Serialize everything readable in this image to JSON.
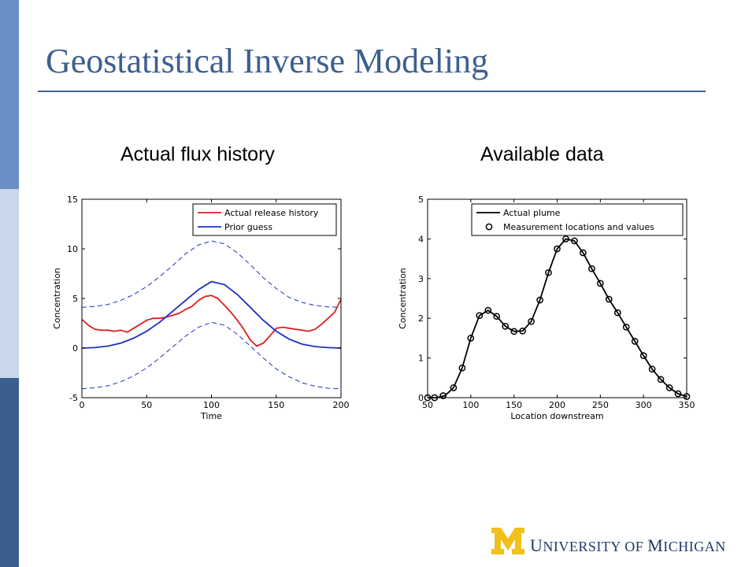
{
  "slide": {
    "title": "Geostatistical Inverse Modeling",
    "colors": {
      "title": "#3d5f8e",
      "bar_dark": "#3a5f8f",
      "bar_light": "#c8d7ea",
      "bar_mid": "#6a8fc4"
    }
  },
  "logo": {
    "mark": "M",
    "text_u": "U",
    "text_niversity": "NIVERSITY OF ",
    "text_m": "M",
    "text_ichigan": "ICHIGAN",
    "colors": {
      "maize": "#f2c01a",
      "blue": "#1f3a6a"
    }
  },
  "chart_data": [
    {
      "type": "line",
      "title": "Actual flux history",
      "xlabel": "Time",
      "ylabel": "Concentration",
      "xlim": [
        0,
        200
      ],
      "ylim": [
        -5,
        15
      ],
      "xticks": [
        0,
        50,
        100,
        150,
        200
      ],
      "yticks": [
        -5,
        0,
        5,
        10,
        15
      ],
      "legend": {
        "position": "top-right",
        "entries": [
          "Actual release history",
          "Prior guess"
        ]
      },
      "series": [
        {
          "name": "Actual release history",
          "color": "#dd1f1f",
          "style": "solid",
          "x": [
            0,
            5,
            10,
            15,
            20,
            25,
            30,
            35,
            40,
            45,
            50,
            55,
            60,
            65,
            70,
            75,
            80,
            85,
            90,
            95,
            100,
            105,
            110,
            115,
            120,
            125,
            130,
            135,
            140,
            145,
            150,
            155,
            160,
            165,
            170,
            175,
            180,
            185,
            190,
            195,
            200
          ],
          "values": [
            2.9,
            2.3,
            1.9,
            1.8,
            1.8,
            1.7,
            1.8,
            1.6,
            2.0,
            2.4,
            2.8,
            3.0,
            3.0,
            3.1,
            3.3,
            3.5,
            3.9,
            4.2,
            4.8,
            5.2,
            5.3,
            5.0,
            4.3,
            3.6,
            2.8,
            1.9,
            0.8,
            0.2,
            0.5,
            1.2,
            2.0,
            2.1,
            2.0,
            1.9,
            1.8,
            1.7,
            1.9,
            2.4,
            3.0,
            3.6,
            4.9
          ]
        },
        {
          "name": "Prior guess",
          "color": "#1f2fc0",
          "style": "solid",
          "x": [
            0,
            10,
            20,
            30,
            40,
            50,
            60,
            70,
            80,
            90,
            100,
            110,
            120,
            130,
            140,
            150,
            160,
            170,
            180,
            190,
            200
          ],
          "values": [
            0.0,
            0.05,
            0.2,
            0.5,
            1.0,
            1.7,
            2.6,
            3.7,
            4.8,
            5.9,
            6.7,
            6.4,
            5.4,
            4.1,
            2.8,
            1.7,
            0.9,
            0.4,
            0.15,
            0.05,
            0.0
          ]
        },
        {
          "name": "",
          "color": "#1f2fc0",
          "style": "dashed",
          "x": [
            0,
            10,
            20,
            30,
            40,
            50,
            60,
            70,
            80,
            90,
            100,
            110,
            120,
            130,
            140,
            150,
            160,
            170,
            180,
            190,
            200
          ],
          "values": [
            4.1,
            4.2,
            4.4,
            4.8,
            5.4,
            6.2,
            7.2,
            8.3,
            9.5,
            10.4,
            10.8,
            10.5,
            9.6,
            8.4,
            7.1,
            6.0,
            5.1,
            4.6,
            4.3,
            4.15,
            4.1
          ]
        },
        {
          "name": "",
          "color": "#1f2fc0",
          "style": "dashed",
          "x": [
            0,
            10,
            20,
            30,
            40,
            50,
            60,
            70,
            80,
            90,
            100,
            110,
            120,
            130,
            140,
            150,
            160,
            170,
            180,
            190,
            200
          ],
          "values": [
            -4.1,
            -4.0,
            -3.8,
            -3.4,
            -2.8,
            -2.0,
            -1.0,
            0.1,
            1.2,
            2.1,
            2.6,
            2.3,
            1.4,
            0.2,
            -1.0,
            -2.1,
            -2.9,
            -3.5,
            -3.85,
            -4.05,
            -4.1
          ]
        }
      ]
    },
    {
      "type": "line",
      "title": "Available data",
      "xlabel": "Location downstream",
      "ylabel": "Concentration",
      "xlim": [
        50,
        350
      ],
      "ylim": [
        0,
        5
      ],
      "xticks": [
        50,
        100,
        150,
        200,
        250,
        300,
        350
      ],
      "yticks": [
        0,
        1,
        2,
        3,
        4,
        5
      ],
      "legend": {
        "position": "top-right",
        "entries": [
          "Actual plume",
          "Measurement locations and values"
        ]
      },
      "series": [
        {
          "name": "Actual plume",
          "color": "#000000",
          "style": "solid",
          "x": [
            50,
            60,
            70,
            80,
            90,
            100,
            110,
            120,
            130,
            140,
            150,
            160,
            170,
            180,
            190,
            200,
            210,
            220,
            230,
            240,
            250,
            260,
            270,
            280,
            290,
            300,
            310,
            320,
            330,
            340,
            350
          ],
          "values": [
            0.0,
            0.0,
            0.05,
            0.25,
            0.75,
            1.5,
            2.07,
            2.2,
            2.05,
            1.8,
            1.67,
            1.68,
            1.92,
            2.46,
            3.15,
            3.75,
            4.0,
            3.95,
            3.65,
            3.25,
            2.88,
            2.48,
            2.14,
            1.78,
            1.42,
            1.06,
            0.72,
            0.46,
            0.25,
            0.1,
            0.03
          ]
        },
        {
          "name": "Measurement locations and values",
          "color": "#000000",
          "style": "markers",
          "x": [
            50,
            58,
            68,
            80,
            90,
            100,
            110,
            120,
            130,
            140,
            150,
            160,
            170,
            180,
            190,
            200,
            210,
            220,
            230,
            240,
            250,
            260,
            270,
            280,
            290,
            300,
            310,
            320,
            330,
            340,
            350
          ],
          "values": [
            0.0,
            0.0,
            0.05,
            0.25,
            0.75,
            1.5,
            2.07,
            2.2,
            2.05,
            1.8,
            1.67,
            1.68,
            1.92,
            2.46,
            3.15,
            3.75,
            4.0,
            3.95,
            3.65,
            3.25,
            2.88,
            2.48,
            2.14,
            1.78,
            1.42,
            1.06,
            0.72,
            0.46,
            0.25,
            0.1,
            0.03
          ]
        }
      ]
    }
  ]
}
